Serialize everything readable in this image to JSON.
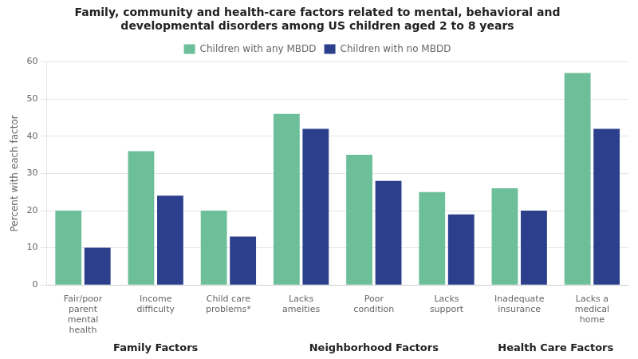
{
  "chart_data": {
    "type": "bar",
    "title": "Family, community and health-care factors related to mental, behavioral and\ndevelopmental disorders among US children aged 2 to 8 years",
    "ylabel": "Percent with each factor",
    "categories": [
      "Fair/poor\nparent\nmental\nhealth",
      "Income\ndifficulty",
      "Child care\nproblems*",
      "Lacks\nameities",
      "Poor\ncondition",
      "Lacks\nsupport",
      "Inadequate\ninsurance",
      "Lacks a\nmedical\nhome"
    ],
    "category_groups": [
      "Family Factors",
      "Family Factors",
      "Family Factors",
      "Neighborhood Factors",
      "Neighborhood Factors",
      "Neighborhood Factors",
      "Health Care Factors",
      "Health Care Factors"
    ],
    "series": [
      {
        "name": "Children with any MBDD",
        "color": "#6dbf99",
        "values": [
          20,
          36,
          20,
          46,
          35,
          25,
          26,
          57
        ]
      },
      {
        "name": "Children with no MBDD",
        "color": "#2b3f8c",
        "values": [
          10,
          24,
          13,
          42,
          28,
          19,
          20,
          42
        ]
      }
    ],
    "ylim": [
      0,
      60
    ],
    "yticks": [
      0,
      10,
      20,
      30,
      40,
      50,
      60
    ],
    "grid": true,
    "legend": "top"
  }
}
